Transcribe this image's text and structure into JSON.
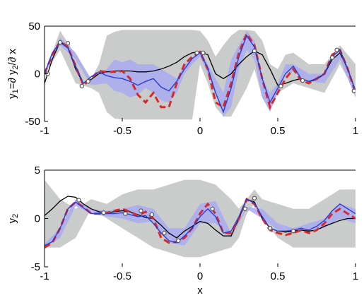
{
  "chart_data": [
    {
      "type": "line",
      "ylabel": "y₁=∂ y₂/∂ x",
      "ylabel_parts": {
        "y1": "y",
        "sub1": "1",
        "eq": "=∂ y",
        "sub2": "2",
        "rest": "/∂ x"
      },
      "xlabel": "",
      "xlim": [
        -1,
        1
      ],
      "ylim": [
        -50,
        50
      ],
      "xticks": [
        -1,
        -0.5,
        0,
        0.5,
        1
      ],
      "xtick_labels": [
        "-1",
        "-0.5",
        "0",
        "0.5",
        "1"
      ],
      "yticks": [
        -50,
        0,
        50
      ],
      "ytick_labels": [
        "-50",
        "0",
        "50"
      ],
      "colors": {
        "band_wide": "#c9cccb",
        "band_narrow": "#a9aaf2",
        "mean_blue": "#2b3bd6",
        "true_red": "#d42a2a",
        "black": "#000000",
        "markers": "#555555"
      },
      "series": [
        {
          "role": "band-wide",
          "x": [
            -1,
            -0.9,
            -0.8,
            -0.7,
            -0.65,
            -0.6,
            -0.55,
            -0.5,
            -0.45,
            -0.4,
            -0.35,
            -0.3,
            -0.25,
            -0.2,
            -0.15,
            -0.1,
            -0.05,
            0,
            0.05,
            0.1,
            0.15,
            0.2,
            0.25,
            0.3,
            0.35,
            0.4,
            0.45,
            0.5,
            0.55,
            0.6,
            0.7,
            0.8,
            0.9,
            1
          ],
          "upper": [
            0,
            45,
            20,
            -5,
            10,
            40,
            44,
            46,
            46,
            46,
            46,
            46,
            46,
            46,
            46,
            46,
            46,
            45,
            35,
            18,
            30,
            40,
            46,
            46,
            45,
            35,
            10,
            5,
            20,
            22,
            10,
            10,
            30,
            10
          ],
          "lower": [
            0,
            25,
            -10,
            -15,
            -20,
            -40,
            -47,
            -48,
            -48,
            -48,
            -48,
            -48,
            -48,
            -48,
            -48,
            -48,
            -48,
            10,
            -10,
            -35,
            -45,
            -45,
            -30,
            -15,
            5,
            -25,
            -35,
            -20,
            -15,
            -10,
            -15,
            -20,
            10,
            -20
          ]
        },
        {
          "role": "band-narrow",
          "x": [
            -1,
            -0.9,
            -0.8,
            -0.7,
            -0.6,
            -0.55,
            -0.5,
            -0.45,
            -0.4,
            -0.35,
            -0.3,
            -0.25,
            -0.2,
            -0.15,
            -0.1,
            -0.05,
            0,
            0.05,
            0.1,
            0.15,
            0.2,
            0.25,
            0.3,
            0.35,
            0.4,
            0.45,
            0.5,
            0.55,
            0.6,
            0.7,
            0.8,
            0.9,
            1
          ],
          "upper": [
            0,
            38,
            22,
            -6,
            5,
            15,
            12,
            15,
            10,
            10,
            10,
            5,
            0,
            -5,
            10,
            15,
            25,
            10,
            -5,
            -20,
            15,
            30,
            45,
            35,
            -5,
            -20,
            -10,
            10,
            10,
            0,
            0,
            25,
            -15
          ],
          "lower": [
            0,
            30,
            15,
            -12,
            -10,
            -18,
            -20,
            -25,
            -22,
            -15,
            -20,
            -28,
            -30,
            -20,
            0,
            10,
            18,
            0,
            -20,
            -45,
            -35,
            5,
            25,
            15,
            -25,
            -40,
            -20,
            0,
            2,
            -8,
            -10,
            15,
            -25
          ]
        },
        {
          "role": "true-function",
          "name": "",
          "x": [
            -1,
            -0.95,
            -0.9,
            -0.85,
            -0.8,
            -0.75,
            -0.7,
            -0.65,
            -0.6,
            -0.55,
            -0.5,
            -0.45,
            -0.4,
            -0.35,
            -0.3,
            -0.25,
            -0.2,
            -0.15,
            -0.1,
            -0.05,
            0,
            0.05,
            0.1,
            0.15,
            0.2,
            0.25,
            0.3,
            0.35,
            0.4,
            0.45,
            0.5,
            0.55,
            0.6,
            0.65,
            0.7,
            0.75,
            0.8,
            0.85,
            0.9,
            0.95,
            1
          ],
          "y": [
            0,
            20,
            34,
            28,
            8,
            -12,
            -5,
            3,
            2,
            2,
            3,
            -5,
            -22,
            -30,
            -20,
            -35,
            -35,
            -10,
            10,
            18,
            23,
            5,
            -30,
            -35,
            -10,
            22,
            42,
            30,
            -5,
            -35,
            -20,
            -5,
            5,
            -7,
            -10,
            -5,
            0,
            20,
            25,
            5,
            -20
          ]
        },
        {
          "role": "posterior-mean",
          "name": "",
          "x": [
            -1,
            -0.95,
            -0.9,
            -0.85,
            -0.8,
            -0.75,
            -0.7,
            -0.65,
            -0.6,
            -0.55,
            -0.5,
            -0.45,
            -0.4,
            -0.35,
            -0.3,
            -0.25,
            -0.2,
            -0.15,
            -0.1,
            -0.05,
            0,
            0.05,
            0.1,
            0.15,
            0.2,
            0.25,
            0.3,
            0.35,
            0.4,
            0.45,
            0.5,
            0.55,
            0.6,
            0.65,
            0.7,
            0.75,
            0.8,
            0.85,
            0.9,
            0.95,
            1
          ],
          "y": [
            0,
            22,
            33,
            27,
            8,
            -10,
            -3,
            2,
            -2,
            -4,
            -5,
            -8,
            -12,
            -8,
            -5,
            -14,
            -18,
            -8,
            5,
            16,
            22,
            6,
            -20,
            -40,
            -15,
            18,
            40,
            28,
            -5,
            -30,
            -15,
            0,
            8,
            -5,
            -8,
            -5,
            0,
            18,
            25,
            5,
            -18
          ]
        },
        {
          "role": "prior-fit",
          "name": "",
          "x": [
            -1,
            -0.95,
            -0.9,
            -0.85,
            -0.8,
            -0.75,
            -0.7,
            -0.65,
            -0.6,
            -0.55,
            -0.5,
            -0.45,
            -0.4,
            -0.35,
            -0.3,
            -0.25,
            -0.2,
            -0.15,
            -0.1,
            -0.05,
            0,
            0.05,
            0.1,
            0.15,
            0.2,
            0.25,
            0.3,
            0.35,
            0.4,
            0.45,
            0.5,
            0.55,
            0.6,
            0.65,
            0.7,
            0.75,
            0.8,
            0.85,
            0.9,
            0.95,
            1
          ],
          "y": [
            -10,
            15,
            34,
            28,
            5,
            -10,
            -6,
            0,
            2,
            3,
            3,
            3,
            2,
            2,
            3,
            5,
            8,
            12,
            18,
            22,
            23,
            20,
            0,
            -5,
            0,
            10,
            18,
            24,
            20,
            5,
            -12,
            -10,
            -7,
            -5,
            -8,
            -6,
            0,
            15,
            22,
            5,
            -18
          ]
        },
        {
          "role": "observations",
          "x": [
            -0.98,
            -0.9,
            -0.85,
            -0.76,
            -0.72,
            -0.02,
            0.02,
            0.35,
            0.52,
            0.66,
            0.85,
            0.88,
            0.99
          ],
          "y": [
            0,
            33,
            32,
            -13,
            -8,
            22,
            22,
            24,
            -13,
            -7,
            17,
            25,
            -18
          ]
        }
      ]
    },
    {
      "type": "line",
      "ylabel": "y₂",
      "ylabel_parts": {
        "y1": "y",
        "sub1": "2"
      },
      "xlabel": "x",
      "xlim": [
        -1,
        1
      ],
      "ylim": [
        -5,
        5
      ],
      "xticks": [
        -1,
        -0.5,
        0,
        0.5,
        1
      ],
      "xtick_labels": [
        "-1",
        "-0.5",
        "0",
        "0.5",
        "1"
      ],
      "yticks": [
        -5,
        0,
        5
      ],
      "ytick_labels": [
        "-5",
        "0",
        "5"
      ],
      "colors": {
        "band_wide": "#c9cccb",
        "band_narrow": "#a9aaf2",
        "mean_blue": "#2b3bd6",
        "true_red": "#d42a2a",
        "black": "#000000",
        "markers": "#555555"
      },
      "series": [
        {
          "role": "band-wide",
          "x": [
            -1,
            -0.9,
            -0.8,
            -0.7,
            -0.6,
            -0.5,
            -0.4,
            -0.3,
            -0.2,
            -0.1,
            0,
            0.1,
            0.2,
            0.25,
            0.3,
            0.35,
            0.4,
            0.5,
            0.6,
            0.7,
            0.8,
            0.9,
            1
          ],
          "upper": [
            4,
            2,
            1,
            2,
            1.5,
            2.5,
            3,
            3,
            3.5,
            4,
            4,
            3.5,
            2,
            1,
            2,
            3,
            2,
            1.5,
            1,
            1,
            2,
            3,
            3
          ],
          "lower": [
            -3,
            -3,
            -2,
            1,
            0,
            -1,
            -2,
            -3,
            -3.5,
            -4,
            -4,
            -3.5,
            -3,
            -2,
            0.5,
            1.5,
            0,
            -2,
            -3,
            -3,
            -3,
            -3,
            -3
          ]
        },
        {
          "role": "band-narrow",
          "x": [
            -1,
            -0.9,
            -0.8,
            -0.7,
            -0.6,
            -0.5,
            -0.4,
            -0.3,
            -0.2,
            -0.1,
            0,
            0.1,
            0.2,
            0.3,
            0.4,
            0.5,
            0.6,
            0.7,
            0.8,
            0.9,
            1
          ],
          "upper": [
            -2.6,
            -1,
            2,
            1,
            0.8,
            1,
            1.4,
            1,
            -1,
            -1,
            1.5,
            1.8,
            -1.5,
            1.2,
            1,
            -0.5,
            -1,
            -0.5,
            0,
            1.5,
            1
          ],
          "lower": [
            -3,
            -2,
            1.3,
            0.5,
            0.2,
            0,
            -0.5,
            -0.3,
            -2.5,
            -2.8,
            -0.5,
            -0.5,
            -2,
            1,
            0,
            -1.2,
            -1.5,
            -1.2,
            -1,
            0,
            -0.5
          ]
        },
        {
          "role": "true-function",
          "name": "",
          "x": [
            -1,
            -0.95,
            -0.9,
            -0.85,
            -0.8,
            -0.75,
            -0.7,
            -0.65,
            -0.6,
            -0.55,
            -0.5,
            -0.45,
            -0.4,
            -0.35,
            -0.3,
            -0.25,
            -0.2,
            -0.15,
            -0.1,
            -0.05,
            0,
            0.05,
            0.1,
            0.15,
            0.2,
            0.25,
            0.3,
            0.35,
            0.4,
            0.45,
            0.5,
            0.55,
            0.6,
            0.65,
            0.7,
            0.75,
            0.8,
            0.85,
            0.9,
            0.95,
            1
          ],
          "y": [
            -3,
            -2.5,
            -1,
            1,
            1.7,
            1.2,
            0.5,
            0.5,
            0.6,
            0.8,
            1,
            0.7,
            0.3,
            0.7,
            0,
            -2,
            -2.5,
            -2.4,
            -2,
            -1,
            0.5,
            1.5,
            0.5,
            -1.5,
            -1.5,
            0,
            2,
            1.5,
            0,
            -1.2,
            -1.5,
            -1.7,
            -1.5,
            -1.2,
            -1.5,
            -1.2,
            -0.5,
            0.5,
            1,
            0.5,
            0
          ]
        },
        {
          "role": "posterior-mean",
          "name": "",
          "x": [
            -1,
            -0.95,
            -0.9,
            -0.85,
            -0.8,
            -0.75,
            -0.7,
            -0.65,
            -0.6,
            -0.55,
            -0.5,
            -0.45,
            -0.4,
            -0.35,
            -0.3,
            -0.25,
            -0.2,
            -0.15,
            -0.1,
            -0.05,
            0,
            0.05,
            0.1,
            0.15,
            0.2,
            0.25,
            0.3,
            0.35,
            0.4,
            0.45,
            0.5,
            0.55,
            0.6,
            0.65,
            0.7,
            0.75,
            0.8,
            0.85,
            0.9,
            0.95,
            1
          ],
          "y": [
            -2.8,
            -2.4,
            -1,
            1,
            1.7,
            1.1,
            0.5,
            0.5,
            0.5,
            0.5,
            0.6,
            0.4,
            0.2,
            0.3,
            -0.5,
            -1.5,
            -2.3,
            -2.5,
            -1.8,
            -1,
            0.2,
            1,
            0.2,
            -1.5,
            -1.3,
            0.2,
            2,
            1.6,
            0.2,
            -1,
            -1.3,
            -1.3,
            -1.2,
            -1,
            -1.2,
            -0.8,
            -0.2,
            0.8,
            1.5,
            1,
            0.5
          ]
        },
        {
          "role": "prior-fit",
          "name": "",
          "x": [
            -1,
            -0.95,
            -0.9,
            -0.85,
            -0.8,
            -0.75,
            -0.7,
            -0.65,
            -0.6,
            -0.55,
            -0.5,
            -0.45,
            -0.4,
            -0.35,
            -0.3,
            -0.25,
            -0.2,
            -0.15,
            -0.1,
            -0.05,
            0,
            0.05,
            0.1,
            0.15,
            0.2,
            0.25,
            0.3,
            0.35,
            0.4,
            0.45,
            0.5,
            0.55,
            0.6,
            0.65,
            0.7,
            0.75,
            0.8,
            0.85,
            0.9,
            0.95,
            1
          ],
          "y": [
            0.3,
            1,
            1.8,
            2.3,
            2.2,
            1.5,
            1,
            0.7,
            0.6,
            0.7,
            0.8,
            0.7,
            0.4,
            0.1,
            0,
            -0.7,
            -1.5,
            -2,
            -1.3,
            -0.8,
            -0.3,
            -0.5,
            -1.2,
            -1.8,
            -1.8,
            0,
            2,
            1.7,
            0,
            -1,
            -1.3,
            -1.4,
            -1.3,
            -1.2,
            -1.3,
            -1.2,
            -0.8,
            -0.5,
            -0.2,
            0,
            0
          ]
        },
        {
          "role": "observations",
          "x": [
            -0.78,
            -0.62,
            -0.48,
            -0.38,
            -0.31,
            -0.23,
            -0.14,
            0.08,
            0.29,
            0.35,
            0.45,
            0.6
          ],
          "y": [
            1.9,
            0.6,
            0.5,
            0.8,
            0.4,
            -1.5,
            -2.3,
            1,
            1,
            2.1,
            -1,
            -1.3
          ]
        }
      ]
    }
  ]
}
